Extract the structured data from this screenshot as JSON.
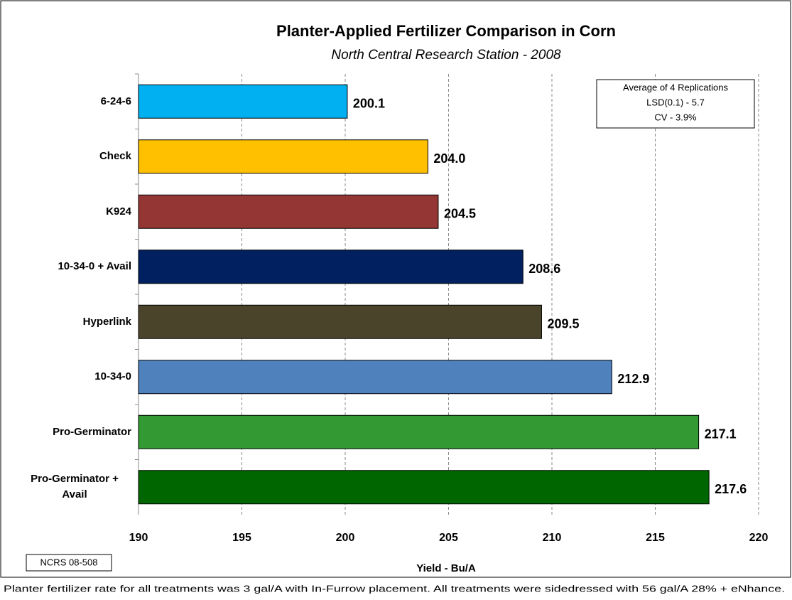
{
  "chart_data": {
    "type": "bar",
    "orientation": "horizontal",
    "title": "Planter-Applied Fertilizer Comparison in Corn",
    "subtitle": "North Central Research Station - 2008",
    "categories": [
      "6-24-6",
      "Check",
      "K924",
      "10-34-0 + Avail",
      "Hyperlink",
      "10-34-0",
      "Pro-Germinator",
      "Pro-Germinator + Avail"
    ],
    "values": [
      200.1,
      204.0,
      204.5,
      208.6,
      209.5,
      212.9,
      217.1,
      217.6
    ],
    "value_labels": [
      "200.1",
      "204.0",
      "204.5",
      "208.6",
      "209.5",
      "212.9",
      "217.1",
      "217.6"
    ],
    "colors": [
      "#00b0f0",
      "#ffc000",
      "#943634",
      "#002060",
      "#4a452a",
      "#4f81bd",
      "#339933",
      "#006600"
    ],
    "xlim": [
      190,
      220
    ],
    "xticks": [
      190,
      195,
      200,
      205,
      210,
      215,
      220
    ],
    "xlabel": "Yield - Bu/A",
    "grid": true,
    "annotations": [
      "Average of 4 Replications",
      "LSD(0.1) - 5.7",
      "CV - 3.9%"
    ],
    "code": "NCRS 08-508",
    "footnote": "Planter fertilizer rate for all treatments was 3 gal/A with In-Furrow placement.  All treatments were sidedressed with 56 gal/A 28% + eNhance."
  }
}
